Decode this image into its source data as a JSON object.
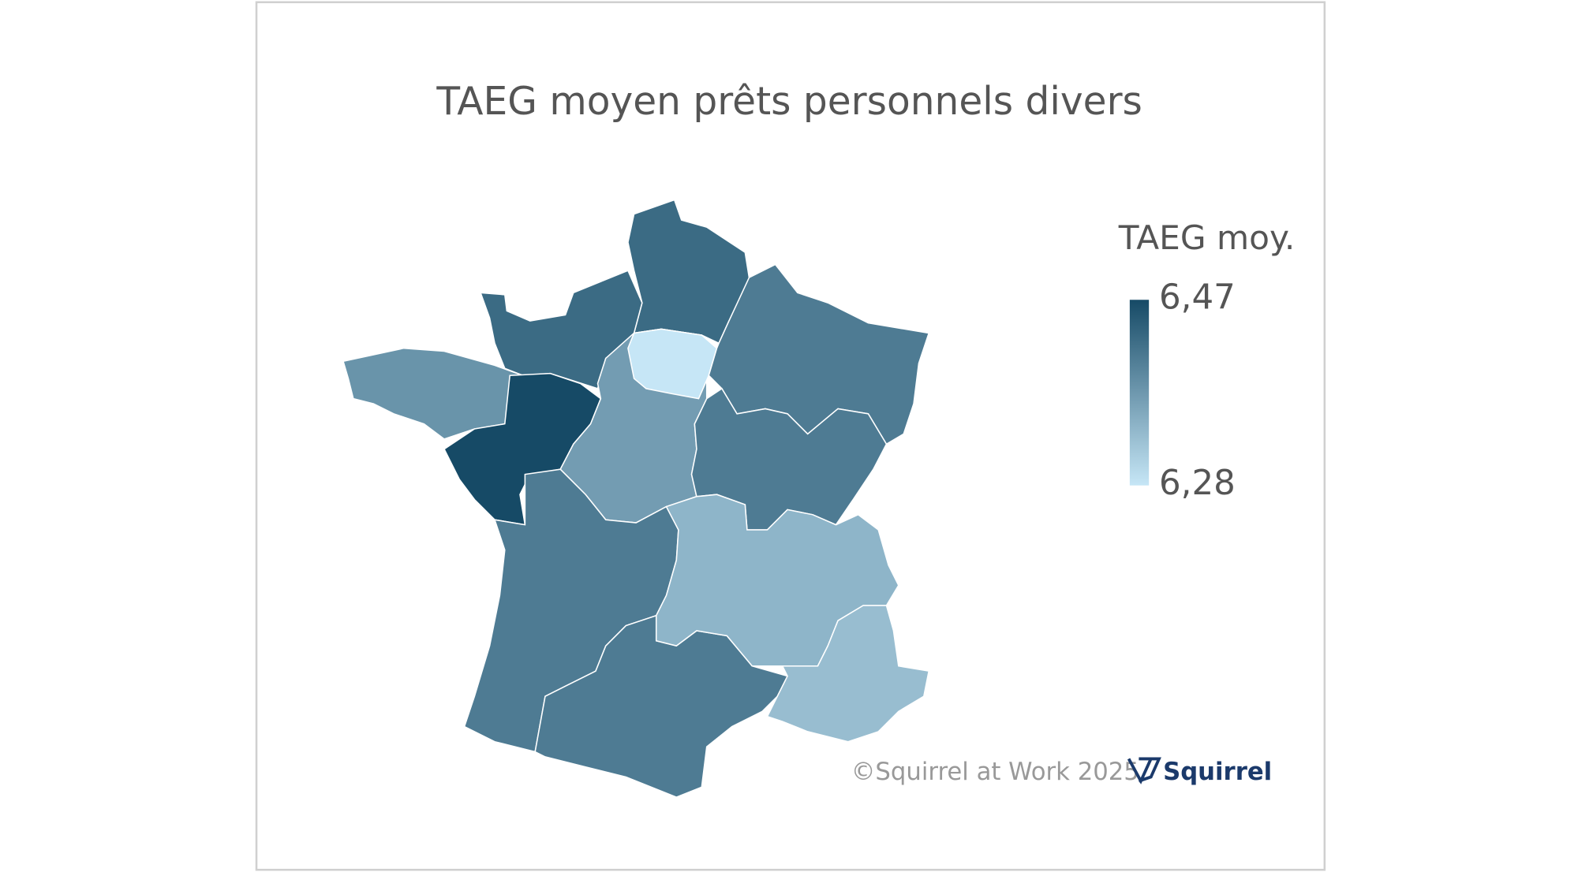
{
  "chart_data": {
    "type": "choropleth",
    "title": "TAEG moyen prêts personnels divers",
    "legend_title": "TAEG moy.",
    "values": [
      6.43,
      6.43,
      6.38,
      6.47,
      6.37,
      6.28,
      6.41,
      6.41,
      6.41,
      6.41,
      6.34,
      6.33
    ],
    "colorscale": [
      "#c6e6f6",
      "#164a66"
    ],
    "clim": [
      6.28,
      6.47
    ],
    "cticks": [
      {
        "value": 6.47,
        "label": "6,47"
      },
      {
        "value": 6.28,
        "label": "6,28"
      }
    ],
    "credit": "©Squirrel at Work 2025",
    "logo": "Squirrel"
  }
}
